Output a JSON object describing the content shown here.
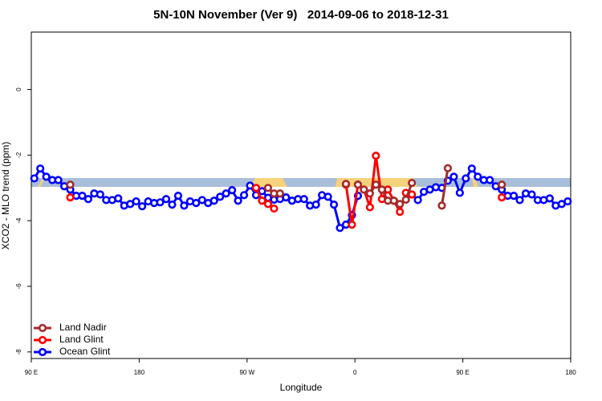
{
  "chart_data": {
    "type": "line",
    "title": "5N-10N November (Ver 9)   2014-09-06 to 2018-12-31",
    "x_label": "Longitude",
    "y_label": "XCO2 - MLO trend (ppm)",
    "x": [
      92.5,
      97.5,
      102.5,
      107.5,
      112.5,
      117.5,
      122.5,
      127.5,
      132.5,
      137.5,
      142.5,
      147.5,
      152.5,
      157.5,
      162.5,
      167.5,
      172.5,
      177.5,
      182.5,
      187.5,
      192.5,
      197.5,
      202.5,
      207.5,
      212.5,
      217.5,
      222.5,
      227.5,
      232.5,
      237.5,
      242.5,
      247.5,
      252.5,
      257.5,
      262.5,
      267.5,
      272.5,
      277.5,
      282.5,
      287.5,
      292.5,
      297.5,
      302.5,
      307.5,
      312.5,
      317.5,
      322.5,
      327.5,
      332.5,
      337.5,
      342.5,
      347.5,
      352.5,
      357.5,
      362.5,
      367.5,
      372.5,
      377.5,
      382.5,
      387.5,
      392.5,
      397.5,
      402.5,
      407.5,
      412.5,
      417.5,
      422.5,
      427.5,
      432.5,
      437.5,
      442.5,
      447.5,
      452.5,
      457.5,
      462.5,
      467.5,
      472.5,
      477.5,
      482.5,
      487.5,
      492.5,
      497.5,
      502.5,
      507.5,
      512.5,
      517.5,
      522.5,
      527.5,
      532.5,
      537.5
    ],
    "series": [
      {
        "name": "Land Nadir",
        "color": "#a52a2a",
        "values": [
          null,
          null,
          null,
          null,
          null,
          null,
          -2.9,
          null,
          null,
          null,
          null,
          null,
          null,
          null,
          null,
          null,
          null,
          null,
          null,
          null,
          null,
          null,
          null,
          null,
          null,
          null,
          null,
          null,
          null,
          null,
          null,
          null,
          null,
          null,
          null,
          null,
          null,
          null,
          null,
          -3.0,
          -3.17,
          -3.17,
          null,
          null,
          null,
          null,
          null,
          null,
          null,
          null,
          null,
          null,
          -2.88,
          null,
          -2.9,
          -3.05,
          -3.17,
          -2.9,
          -3.05,
          -3.39,
          -3.39,
          -3.49,
          -3.36,
          -2.85,
          null,
          null,
          null,
          null,
          -3.54,
          -2.4,
          null,
          null,
          null,
          null,
          null,
          null,
          null,
          null,
          -2.9,
          null,
          null,
          null,
          null,
          null,
          null,
          null,
          null,
          null,
          null,
          null
        ]
      },
      {
        "name": "Land Glint",
        "color": "#ff0000",
        "values": [
          null,
          null,
          null,
          null,
          null,
          null,
          -3.29,
          null,
          null,
          null,
          null,
          null,
          null,
          null,
          null,
          null,
          null,
          null,
          null,
          null,
          null,
          null,
          null,
          null,
          null,
          null,
          null,
          null,
          null,
          null,
          null,
          null,
          null,
          null,
          null,
          null,
          null,
          -3.0,
          -3.39,
          -3.49,
          -3.63,
          null,
          null,
          null,
          null,
          null,
          null,
          null,
          null,
          null,
          null,
          null,
          -2.9,
          -4.12,
          -2.9,
          -3.05,
          -3.59,
          -2.02,
          -3.34,
          -3.05,
          -3.39,
          -3.73,
          -3.15,
          -3.2,
          null,
          null,
          null,
          null,
          null,
          null,
          null,
          null,
          null,
          null,
          null,
          null,
          null,
          null,
          -3.29,
          null,
          null,
          null,
          null,
          null,
          null,
          null,
          null,
          null,
          null,
          null
        ]
      },
      {
        "name": "Ocean Glint",
        "color": "#0000ff",
        "values": [
          -2.71,
          -2.41,
          -2.66,
          -2.76,
          -2.76,
          -2.95,
          -3.05,
          -3.24,
          -3.24,
          -3.34,
          -3.17,
          -3.2,
          -3.37,
          -3.37,
          -3.32,
          -3.54,
          -3.49,
          -3.41,
          -3.56,
          -3.41,
          -3.46,
          -3.44,
          -3.34,
          -3.51,
          -3.24,
          -3.54,
          -3.41,
          -3.46,
          -3.37,
          -3.46,
          -3.39,
          -3.27,
          -3.17,
          -3.07,
          -3.39,
          -3.22,
          -2.93,
          -3.22,
          -3.1,
          -3.3,
          -3.36,
          -3.34,
          -3.29,
          -3.39,
          -3.34,
          -3.34,
          -3.54,
          -3.51,
          -3.22,
          -3.27,
          -3.51,
          -4.22,
          -4.12,
          -3.83,
          -3.24,
          null,
          null,
          null,
          null,
          null,
          null,
          null,
          null,
          -3.2,
          -3.37,
          -3.12,
          -3.05,
          -2.98,
          -3.0,
          -2.78,
          -2.66,
          -3.15,
          -2.71,
          -2.41,
          -2.66,
          -2.76,
          -2.76,
          -2.95,
          -3.05,
          -3.24,
          -3.24,
          -3.37,
          -3.17,
          -3.2,
          -3.37,
          -3.37,
          -3.32,
          -3.54,
          -3.49,
          -3.41
        ]
      }
    ],
    "xlim": [
      90,
      540
    ],
    "ylim": [
      -8.2,
      1.75
    ],
    "xticks": [
      {
        "value": 90,
        "label": "90 E"
      },
      180,
      {
        "value": 270,
        "label": "90 W"
      },
      {
        "value": 360,
        "label": "0"
      },
      {
        "value": 450,
        "label": "90 E"
      },
      {
        "value": 540,
        "label": "180"
      }
    ],
    "yticks": [
      0,
      -2,
      -4,
      -6,
      -8
    ],
    "legend": "lower left"
  }
}
